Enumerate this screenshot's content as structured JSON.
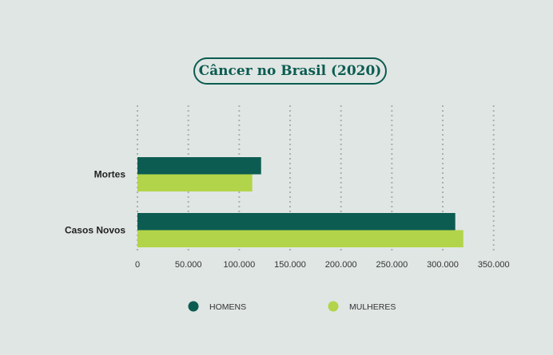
{
  "chart_data": {
    "type": "bar",
    "orientation": "horizontal",
    "title": "Câncer no Brasil (2020)",
    "categories": [
      "Mortes",
      "Casos Novos"
    ],
    "series": [
      {
        "name": "HOMENS",
        "color": "#0c5c52",
        "values": [
          121500,
          312300
        ]
      },
      {
        "name": "MULHERES",
        "color": "#b2d44a",
        "values": [
          112800,
          320200
        ]
      }
    ],
    "xlim": [
      0,
      350000
    ],
    "xticks": [
      0,
      50000,
      100000,
      150000,
      200000,
      250000,
      300000,
      350000
    ],
    "xtick_labels": [
      "0",
      "50.000",
      "100.000",
      "150.000",
      "200.000",
      "250.000",
      "300.000",
      "350.000"
    ],
    "grid": "vertical dotted",
    "legend": "bottom",
    "xlabel": "",
    "ylabel": ""
  }
}
